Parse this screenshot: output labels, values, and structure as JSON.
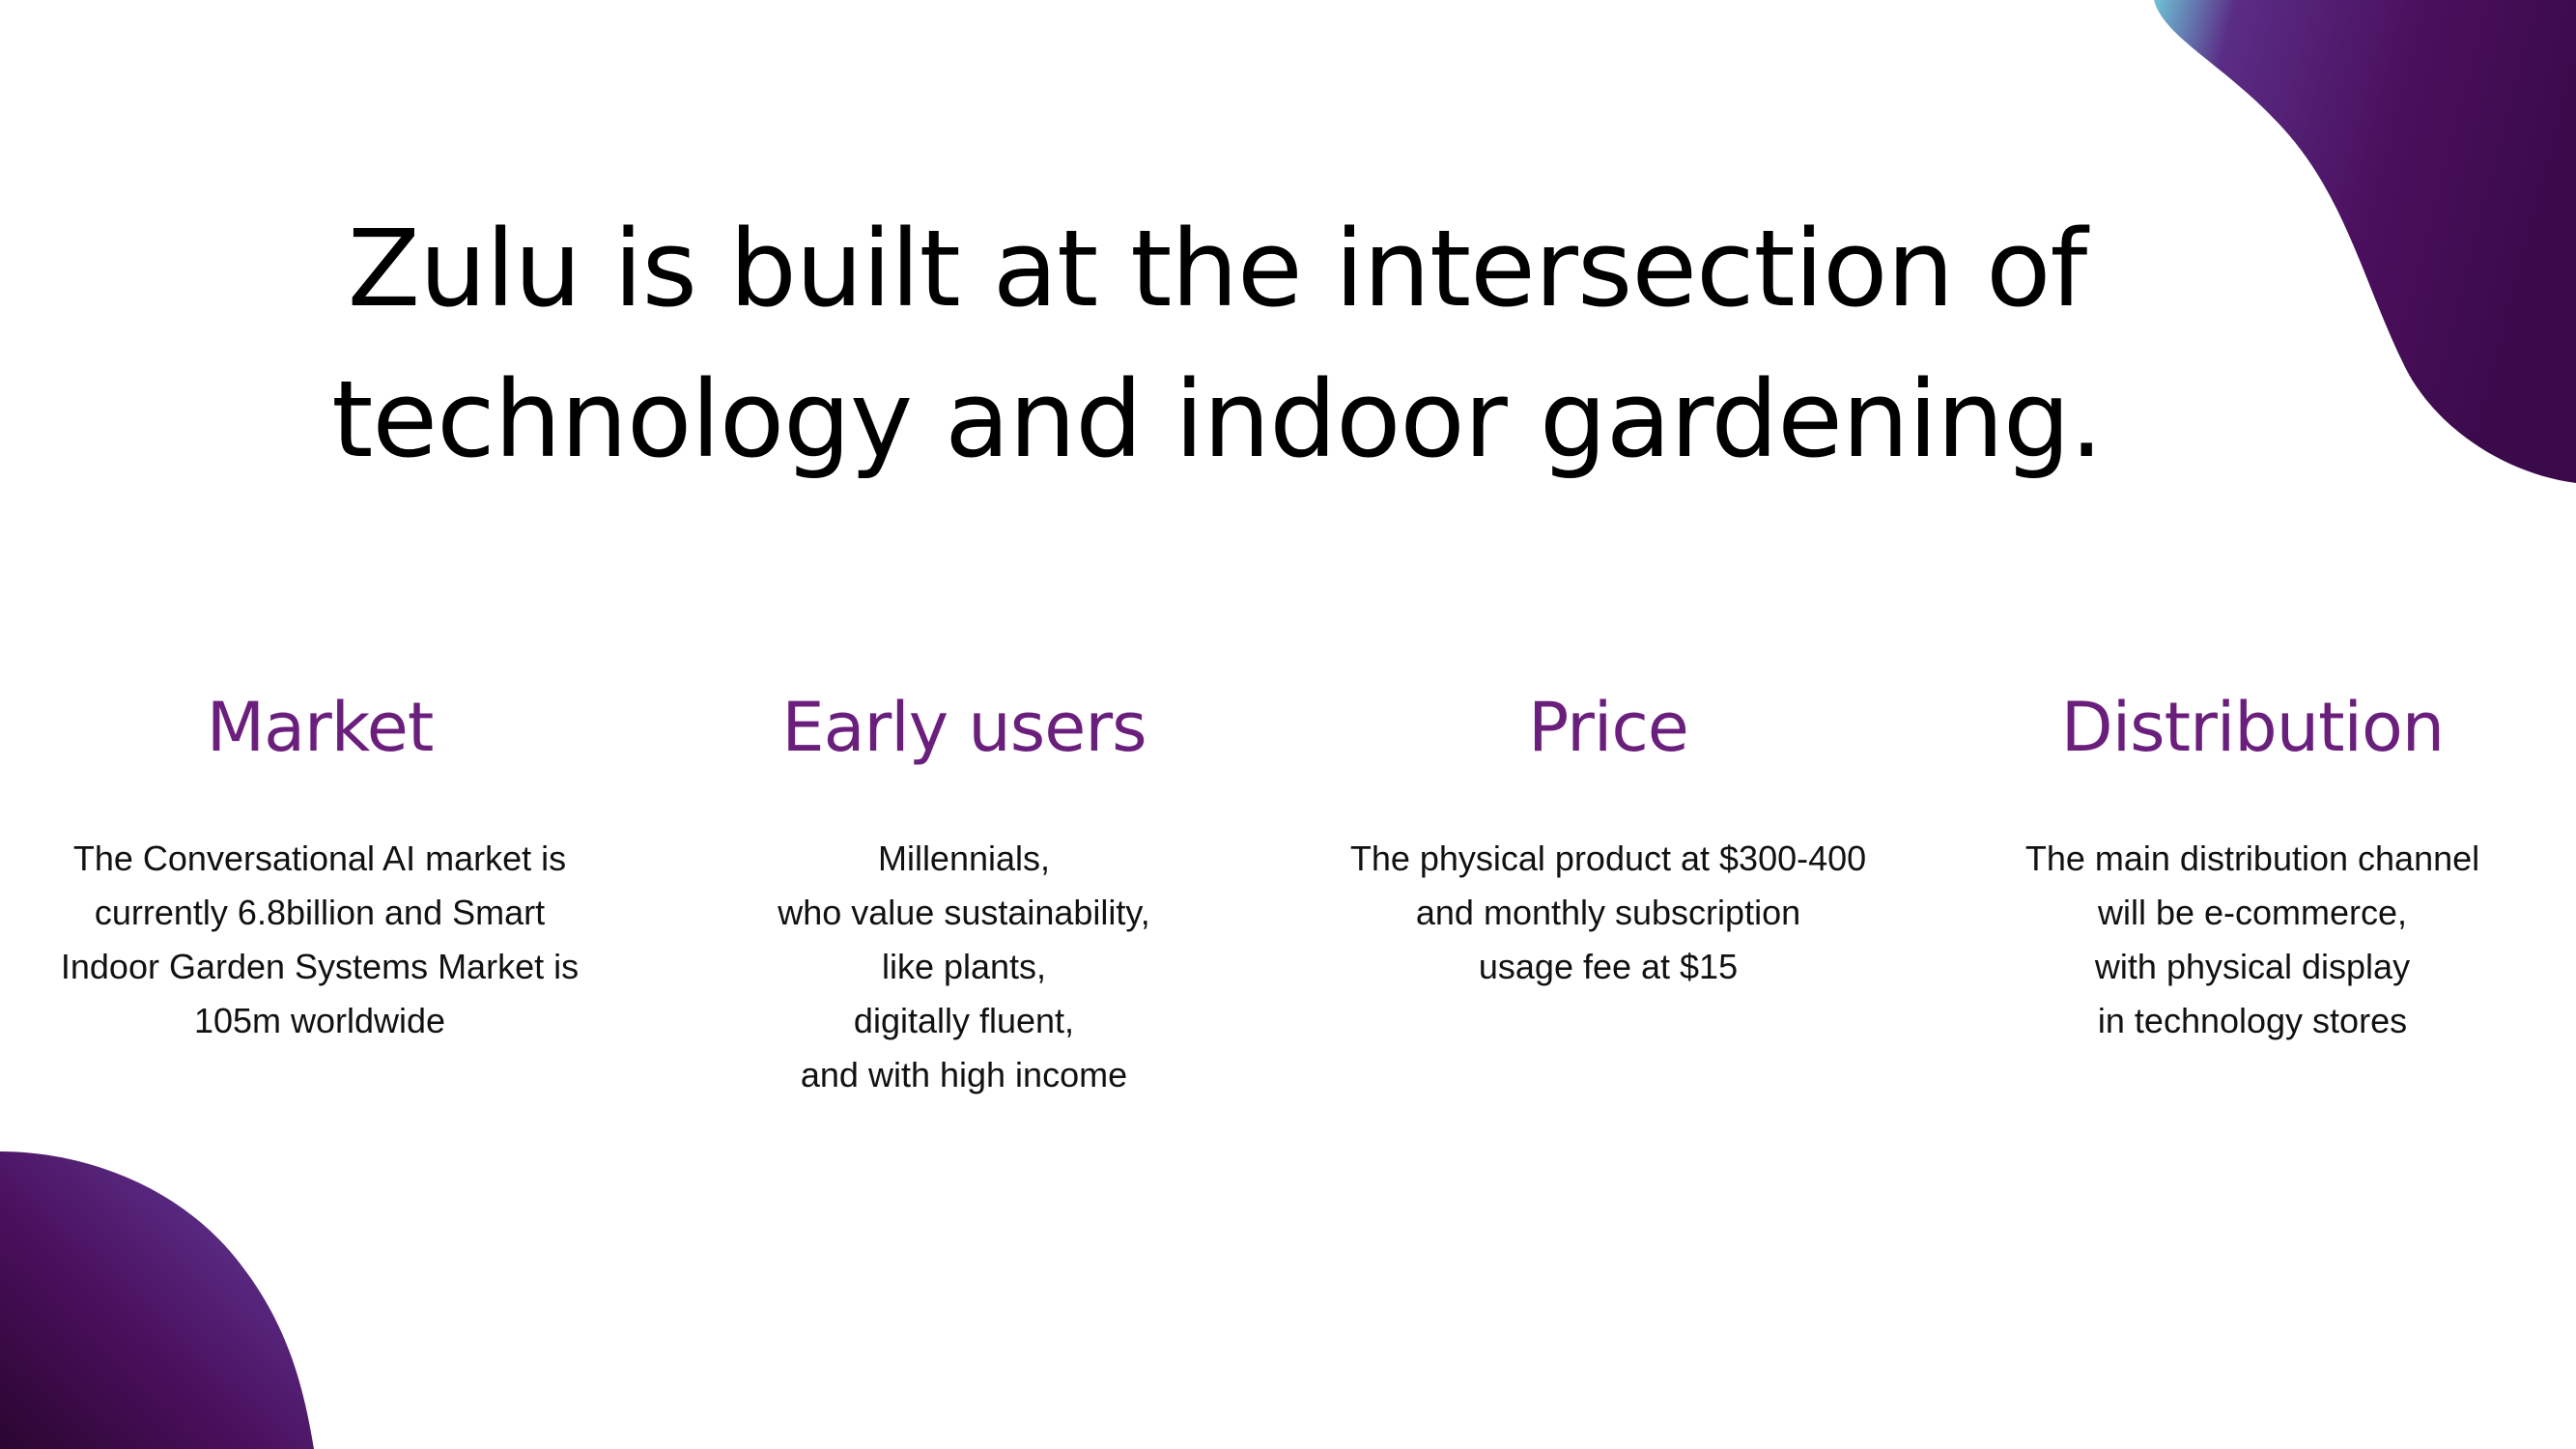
{
  "slide": {
    "headline": {
      "line1": "Zulu is built at the intersection of",
      "line2": "technology and indoor gardening."
    },
    "columns": [
      {
        "title": "Market",
        "lines": [
          "The Conversational AI market is",
          "currently 6.8billion and Smart",
          "Indoor Garden Systems Market  is",
          "105m worldwide"
        ]
      },
      {
        "title": "Early users",
        "lines": [
          "Millennials,",
          "who value sustainability,",
          "like plants,",
          "digitally fluent,",
          "and with high income"
        ]
      },
      {
        "title": "Price",
        "lines": [
          "The physical product at $300-400",
          "and monthly subscription",
          "usage fee at $15"
        ]
      },
      {
        "title": "Distribution",
        "lines": [
          "The main distribution channel",
          "will be e-commerce,",
          "with physical display",
          "in technology stores"
        ]
      }
    ],
    "colors": {
      "heading_accent": "#6b1f7c",
      "blob_purple": "#4a0f5c",
      "blob_teal": "#6fc3d6"
    }
  }
}
